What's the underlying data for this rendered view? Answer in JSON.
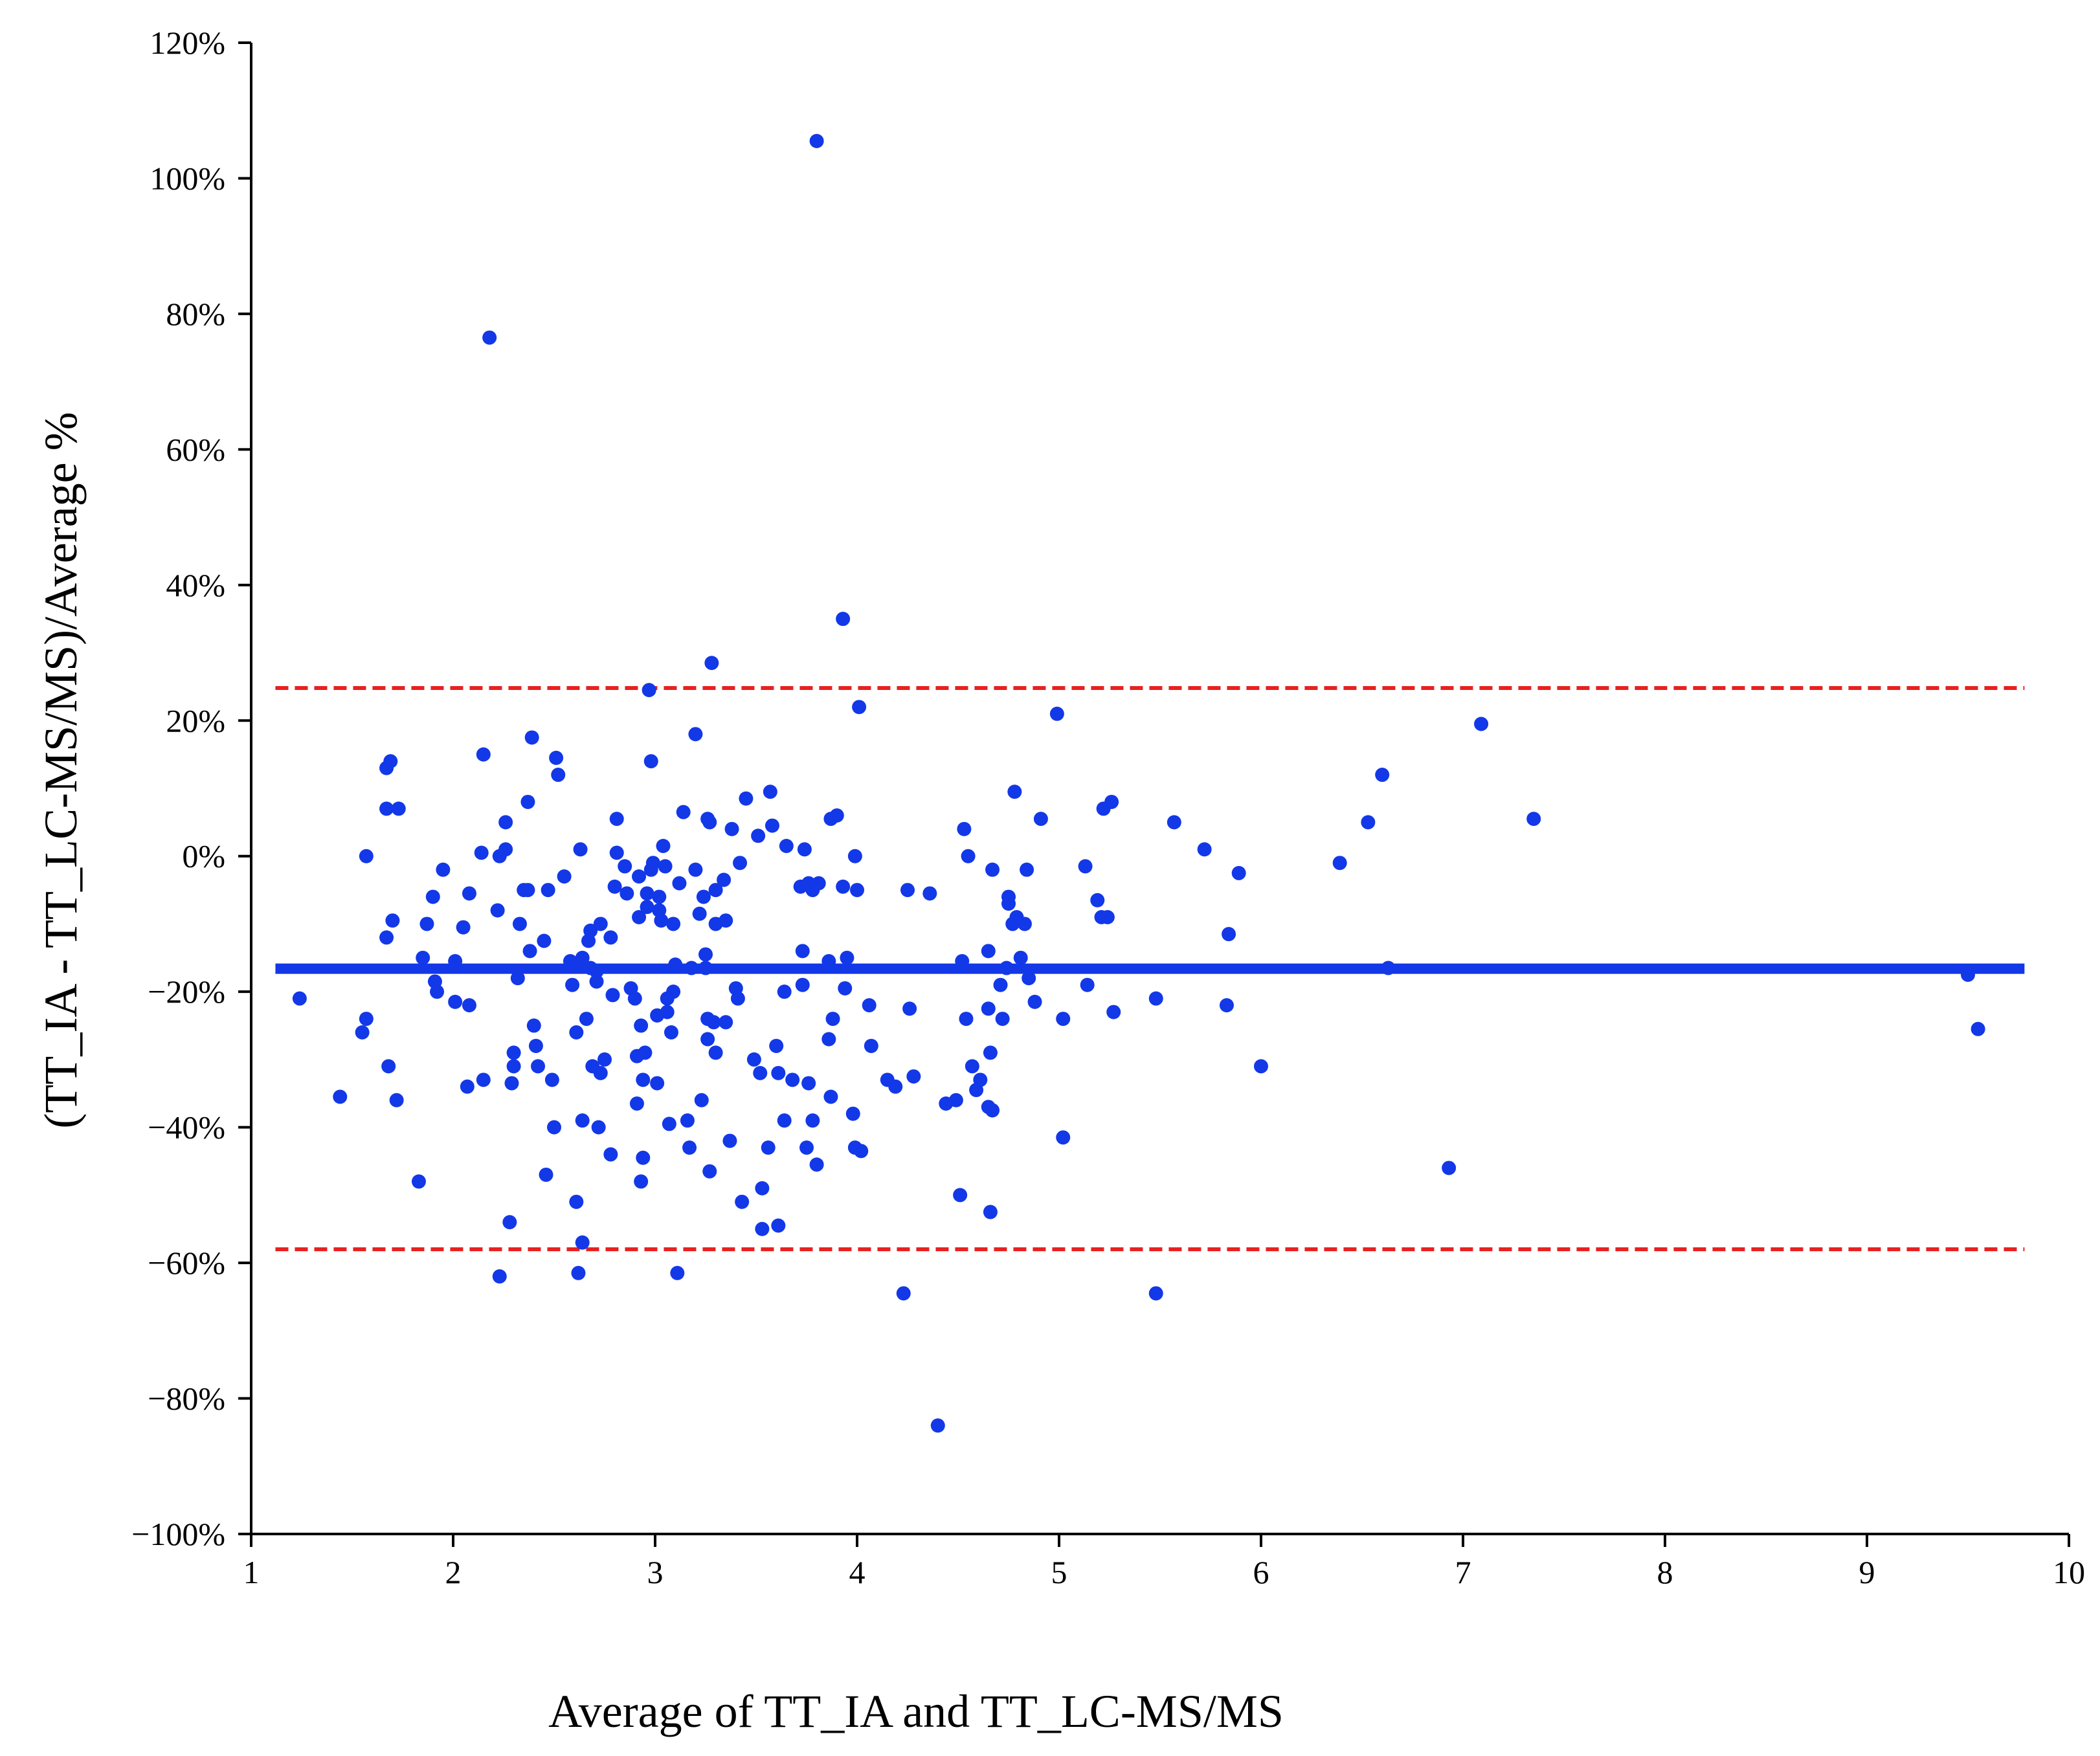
{
  "chart_data": {
    "type": "scatter",
    "title": "",
    "xlabel": "Average of TT_IA and TT_LC-MS/MS",
    "ylabel": "(TT_IA - TT_LC-MS/MS)/Average %",
    "xlim": [
      1,
      10
    ],
    "ylim": [
      -100,
      120
    ],
    "x_ticks": [
      1,
      2,
      3,
      4,
      5,
      6,
      7,
      8,
      9,
      10
    ],
    "y_ticks": [
      -100,
      -80,
      -60,
      -40,
      -20,
      0,
      20,
      40,
      60,
      80,
      100,
      120
    ],
    "x_tick_labels": [
      "1",
      "2",
      "3",
      "4",
      "5",
      "6",
      "7",
      "8",
      "9",
      "10"
    ],
    "y_tick_labels": [
      "−100%",
      "−80%",
      "−60%",
      "−40%",
      "−20%",
      "0%",
      "20%",
      "40%",
      "60%",
      "80%",
      "100%",
      "120%"
    ],
    "grid": false,
    "reference_lines": [
      {
        "name": "mean-difference",
        "y": -16.6,
        "x_start": 1.12,
        "x_end": 9.78,
        "color": "#1338e8",
        "style": "solid"
      },
      {
        "name": "upper-limit-of-agreement",
        "y": 24.8,
        "x_start": 1.12,
        "x_end": 9.78,
        "color": "#e8201f",
        "style": "dashed"
      },
      {
        "name": "lower-limit-of-agreement",
        "y": -58.0,
        "x_start": 1.12,
        "x_end": 9.78,
        "color": "#e8201f",
        "style": "dashed"
      }
    ],
    "series": [
      {
        "name": "differences",
        "color": "#1338e8",
        "points": [
          [
            1.24,
            -21
          ],
          [
            1.44,
            -35.5
          ],
          [
            1.55,
            -26
          ],
          [
            1.57,
            -24
          ],
          [
            1.57,
            0
          ],
          [
            1.67,
            13
          ],
          [
            1.69,
            14
          ],
          [
            1.67,
            7
          ],
          [
            1.7,
            -9.5
          ],
          [
            1.67,
            -12
          ],
          [
            1.68,
            -31
          ],
          [
            1.72,
            -36
          ],
          [
            1.73,
            7
          ],
          [
            1.83,
            -48
          ],
          [
            1.85,
            -15
          ],
          [
            1.87,
            -10
          ],
          [
            1.9,
            -6
          ],
          [
            1.91,
            -18.5
          ],
          [
            1.92,
            -20
          ],
          [
            1.95,
            -2
          ],
          [
            2.01,
            -15.5
          ],
          [
            2.01,
            -21.5
          ],
          [
            2.05,
            -10.5
          ],
          [
            2.07,
            -34
          ],
          [
            2.08,
            -22
          ],
          [
            2.08,
            -5.5
          ],
          [
            2.14,
            0.5
          ],
          [
            2.15,
            15
          ],
          [
            2.18,
            76.5
          ],
          [
            2.15,
            -33
          ],
          [
            2.23,
            -62
          ],
          [
            2.22,
            -8
          ],
          [
            2.23,
            0
          ],
          [
            2.26,
            5
          ],
          [
            2.26,
            1
          ],
          [
            2.28,
            -54
          ],
          [
            2.3,
            -29
          ],
          [
            2.3,
            -31
          ],
          [
            2.29,
            -33.5
          ],
          [
            2.32,
            -18
          ],
          [
            2.33,
            -10
          ],
          [
            2.35,
            -5
          ],
          [
            2.37,
            -5
          ],
          [
            2.37,
            8
          ],
          [
            2.38,
            -14
          ],
          [
            2.39,
            17.5
          ],
          [
            2.4,
            -25
          ],
          [
            2.41,
            -28
          ],
          [
            2.42,
            -31
          ],
          [
            2.46,
            -47
          ],
          [
            2.45,
            -12.5
          ],
          [
            2.47,
            -5
          ],
          [
            2.49,
            -33
          ],
          [
            2.5,
            -40
          ],
          [
            2.51,
            14.5
          ],
          [
            2.52,
            12
          ],
          [
            2.55,
            -3
          ],
          [
            2.58,
            -15.5
          ],
          [
            2.59,
            -19
          ],
          [
            2.6,
            -16
          ],
          [
            2.61,
            -26
          ],
          [
            2.61,
            -51
          ],
          [
            2.62,
            -61.5
          ],
          [
            2.63,
            1
          ],
          [
            2.64,
            -15
          ],
          [
            2.64,
            -39
          ],
          [
            2.64,
            -57
          ],
          [
            2.66,
            -24
          ],
          [
            2.67,
            -12.5
          ],
          [
            2.68,
            -16.5
          ],
          [
            2.68,
            -11
          ],
          [
            2.69,
            -31
          ],
          [
            2.71,
            -17
          ],
          [
            2.71,
            -18.5
          ],
          [
            2.72,
            -40
          ],
          [
            2.73,
            -32
          ],
          [
            2.73,
            -10
          ],
          [
            2.75,
            -30
          ],
          [
            2.78,
            -44
          ],
          [
            2.78,
            -12
          ],
          [
            2.79,
            -20.5
          ],
          [
            2.8,
            -4.5
          ],
          [
            2.81,
            0.5
          ],
          [
            2.81,
            5.5
          ],
          [
            2.85,
            -1.5
          ],
          [
            2.86,
            -5.5
          ],
          [
            2.88,
            -19.5
          ],
          [
            2.9,
            -21
          ],
          [
            2.91,
            -29.5
          ],
          [
            2.91,
            -36.5
          ],
          [
            2.92,
            -9
          ],
          [
            2.92,
            -3
          ],
          [
            2.93,
            -25
          ],
          [
            2.93,
            -48
          ],
          [
            2.94,
            -44.5
          ],
          [
            2.94,
            -33
          ],
          [
            2.95,
            -29
          ],
          [
            2.96,
            -7.5
          ],
          [
            2.96,
            -5.5
          ],
          [
            2.97,
            24.5
          ],
          [
            2.98,
            14
          ],
          [
            2.98,
            -2
          ],
          [
            2.99,
            -1
          ],
          [
            3.01,
            -23.5
          ],
          [
            3.01,
            -33.5
          ],
          [
            3.02,
            -6
          ],
          [
            3.02,
            -8
          ],
          [
            3.03,
            -9.5
          ],
          [
            3.04,
            1.5
          ],
          [
            3.05,
            -1.5
          ],
          [
            3.06,
            -21
          ],
          [
            3.06,
            -23
          ],
          [
            3.07,
            -39.5
          ],
          [
            3.08,
            -26
          ],
          [
            3.09,
            -10
          ],
          [
            3.09,
            -20
          ],
          [
            3.1,
            -16
          ],
          [
            3.11,
            -61.5
          ],
          [
            3.12,
            -4
          ],
          [
            3.14,
            6.5
          ],
          [
            3.16,
            -39
          ],
          [
            3.17,
            -43
          ],
          [
            3.18,
            -16.5
          ],
          [
            3.2,
            -2
          ],
          [
            3.2,
            18
          ],
          [
            3.22,
            -8.5
          ],
          [
            3.23,
            -36
          ],
          [
            3.24,
            -6
          ],
          [
            3.25,
            -14.5
          ],
          [
            3.25,
            -16.5
          ],
          [
            3.26,
            5.5
          ],
          [
            3.26,
            -24
          ],
          [
            3.26,
            -27
          ],
          [
            3.27,
            -46.5
          ],
          [
            3.27,
            5
          ],
          [
            3.28,
            28.5
          ],
          [
            3.29,
            -24.5
          ],
          [
            3.3,
            -29
          ],
          [
            3.3,
            -10
          ],
          [
            3.3,
            -5
          ],
          [
            3.34,
            -3.5
          ],
          [
            3.35,
            -24.5
          ],
          [
            3.35,
            -9.5
          ],
          [
            3.37,
            -42
          ],
          [
            3.38,
            4
          ],
          [
            3.4,
            -19.5
          ],
          [
            3.41,
            -21
          ],
          [
            3.42,
            -1
          ],
          [
            3.43,
            -51
          ],
          [
            3.45,
            8.5
          ],
          [
            3.49,
            -30
          ],
          [
            3.51,
            3
          ],
          [
            3.52,
            -32
          ],
          [
            3.53,
            -55
          ],
          [
            3.53,
            -49
          ],
          [
            3.56,
            -43
          ],
          [
            3.57,
            9.5
          ],
          [
            3.58,
            4.5
          ],
          [
            3.6,
            -28
          ],
          [
            3.61,
            -32
          ],
          [
            3.61,
            -54.5
          ],
          [
            3.64,
            -20
          ],
          [
            3.64,
            -39
          ],
          [
            3.65,
            1.5
          ],
          [
            3.68,
            -33
          ],
          [
            3.72,
            -4.5
          ],
          [
            3.73,
            -14
          ],
          [
            3.73,
            -19
          ],
          [
            3.74,
            1
          ],
          [
            3.75,
            -43
          ],
          [
            3.76,
            -33.5
          ],
          [
            3.76,
            -4
          ],
          [
            3.78,
            -5
          ],
          [
            3.78,
            -39
          ],
          [
            3.8,
            105.5
          ],
          [
            3.8,
            -45.5
          ],
          [
            3.81,
            -4
          ],
          [
            3.86,
            -15.5
          ],
          [
            3.86,
            -27
          ],
          [
            3.87,
            5.5
          ],
          [
            3.87,
            -35.5
          ],
          [
            3.88,
            -24
          ],
          [
            3.9,
            6
          ],
          [
            3.93,
            35
          ],
          [
            3.93,
            -4.5
          ],
          [
            3.94,
            -19.5
          ],
          [
            3.95,
            -15
          ],
          [
            3.98,
            -38
          ],
          [
            3.99,
            0
          ],
          [
            3.99,
            -43
          ],
          [
            4.0,
            -5
          ],
          [
            4.01,
            22
          ],
          [
            4.02,
            -43.5
          ],
          [
            4.06,
            -22
          ],
          [
            4.07,
            -28
          ],
          [
            4.15,
            -33
          ],
          [
            4.19,
            -34
          ],
          [
            4.23,
            -64.5
          ],
          [
            4.25,
            -5
          ],
          [
            4.26,
            -22.5
          ],
          [
            4.28,
            -32.5
          ],
          [
            4.36,
            -5.5
          ],
          [
            4.4,
            -84
          ],
          [
            4.44,
            -36.5
          ],
          [
            4.49,
            -36
          ],
          [
            4.51,
            -50
          ],
          [
            4.52,
            -15.5
          ],
          [
            4.53,
            4
          ],
          [
            4.54,
            -24
          ],
          [
            4.55,
            0
          ],
          [
            4.57,
            -31
          ],
          [
            4.59,
            -34.5
          ],
          [
            4.61,
            -33
          ],
          [
            4.65,
            -14
          ],
          [
            4.65,
            -37
          ],
          [
            4.65,
            -22.5
          ],
          [
            4.66,
            -29
          ],
          [
            4.66,
            -52.5
          ],
          [
            4.67,
            -37.5
          ],
          [
            4.67,
            -2
          ],
          [
            4.71,
            -19
          ],
          [
            4.72,
            -24
          ],
          [
            4.74,
            -16.5
          ],
          [
            4.75,
            -6
          ],
          [
            4.75,
            -7
          ],
          [
            4.77,
            -10
          ],
          [
            4.78,
            9.5
          ],
          [
            4.79,
            -9
          ],
          [
            4.81,
            -15
          ],
          [
            4.83,
            -10
          ],
          [
            4.84,
            -2
          ],
          [
            4.85,
            -18
          ],
          [
            4.88,
            -21.5
          ],
          [
            4.91,
            5.5
          ],
          [
            4.99,
            21
          ],
          [
            5.02,
            -24
          ],
          [
            5.02,
            -41.5
          ],
          [
            5.13,
            -1.5
          ],
          [
            5.14,
            -19
          ],
          [
            5.19,
            -6.5
          ],
          [
            5.21,
            -9
          ],
          [
            5.22,
            7
          ],
          [
            5.24,
            -9
          ],
          [
            5.26,
            8
          ],
          [
            5.27,
            -23
          ],
          [
            5.48,
            -21
          ],
          [
            5.48,
            -64.5
          ],
          [
            5.57,
            5
          ],
          [
            5.72,
            1
          ],
          [
            5.83,
            -22
          ],
          [
            5.84,
            -11.5
          ],
          [
            5.89,
            -2.5
          ],
          [
            6.0,
            -31
          ],
          [
            6.39,
            -1
          ],
          [
            6.53,
            5
          ],
          [
            6.6,
            12
          ],
          [
            6.63,
            -16.5
          ],
          [
            6.93,
            -46
          ],
          [
            7.09,
            19.5
          ],
          [
            7.35,
            5.5
          ],
          [
            9.5,
            -17.5
          ],
          [
            9.55,
            -25.5
          ]
        ]
      }
    ]
  }
}
